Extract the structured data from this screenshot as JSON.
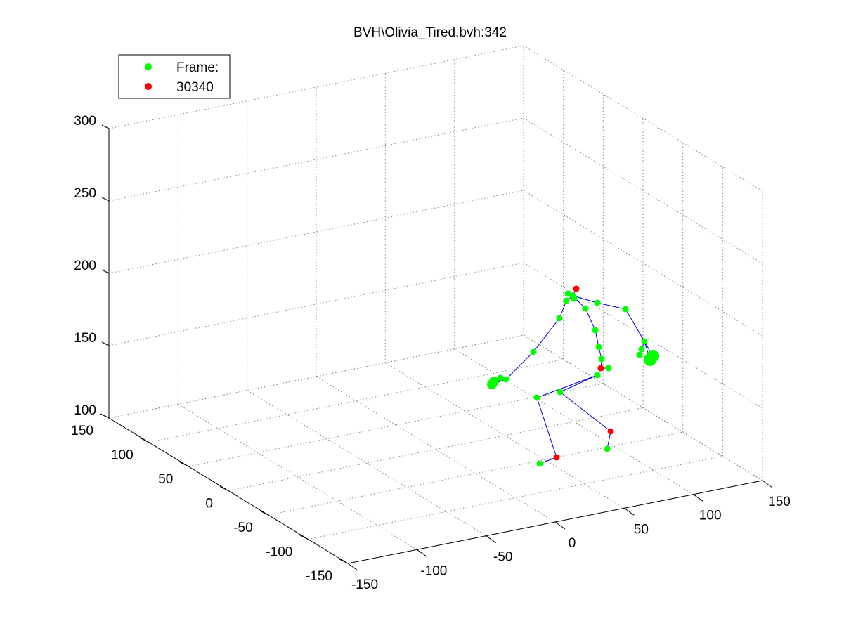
{
  "chart_data": {
    "type": "scatter",
    "title": "BVH\\Olivia_Tired.bvh:342",
    "legend": {
      "placement": "top-left",
      "entries": [
        {
          "label": "Frame:",
          "color": "#00ff00"
        },
        {
          "label": "30340",
          "color": "#ff0000"
        }
      ]
    },
    "axes": {
      "x_ticks": [
        "-150",
        "-100",
        "-50",
        "0",
        "50",
        "100",
        "150"
      ],
      "y_ticks": [
        "150",
        "100",
        "50",
        "0",
        "-50",
        "-100",
        "-150"
      ],
      "z_ticks": [
        "100",
        "150",
        "200",
        "250",
        "300"
      ],
      "xlim": [
        -150,
        150
      ],
      "ylim": [
        -150,
        150
      ],
      "zlim": [
        100,
        300
      ],
      "grid": true
    },
    "colors": {
      "joint": "#00ff00",
      "highlight": "#ff0000",
      "bone": "#0000cc"
    }
  }
}
